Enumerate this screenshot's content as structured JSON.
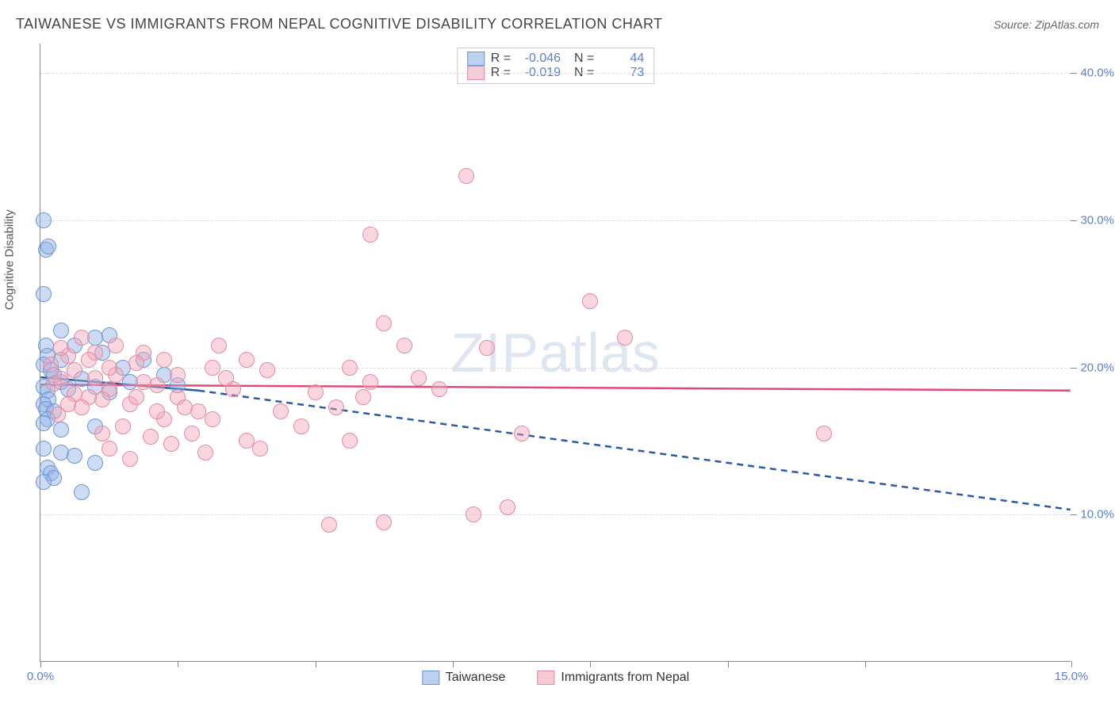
{
  "title": "TAIWANESE VS IMMIGRANTS FROM NEPAL COGNITIVE DISABILITY CORRELATION CHART",
  "source": "Source: ZipAtlas.com",
  "ylabel": "Cognitive Disability",
  "watermark_a": "ZIP",
  "watermark_b": "atlas",
  "chart": {
    "type": "scatter",
    "xlim": [
      0,
      15
    ],
    "ylim": [
      0,
      42
    ],
    "xticks": [
      0,
      2,
      4,
      6,
      8,
      10,
      12,
      15
    ],
    "xtick_labels": {
      "0": "0.0%",
      "15": "15.0%"
    },
    "yticks": [
      10,
      20,
      30,
      40
    ],
    "ytick_labels": {
      "10": "10.0%",
      "20": "20.0%",
      "30": "30.0%",
      "40": "40.0%"
    },
    "grid_color": "#dddddd",
    "background_color": "#ffffff",
    "marker_radius": 10,
    "series": {
      "taiwanese": {
        "label": "Taiwanese",
        "fill": "rgba(144,178,230,0.45)",
        "stroke": "#6b96d6",
        "line_color": "#2b5aa5",
        "R": "-0.046",
        "N": "44",
        "regression": {
          "x1": 0,
          "y1": 19.3,
          "x2": 2.3,
          "y2": 18.4
        },
        "regression_dash": {
          "x1": 2.3,
          "y1": 18.4,
          "x2": 15,
          "y2": 10.3
        },
        "points": [
          [
            0.05,
            30.0
          ],
          [
            0.08,
            28.0
          ],
          [
            0.12,
            28.2
          ],
          [
            0.05,
            25.0
          ],
          [
            0.3,
            22.5
          ],
          [
            0.8,
            22.0
          ],
          [
            1.0,
            22.2
          ],
          [
            0.9,
            21.0
          ],
          [
            0.08,
            21.5
          ],
          [
            0.1,
            20.8
          ],
          [
            0.05,
            20.2
          ],
          [
            0.15,
            19.8
          ],
          [
            0.2,
            19.5
          ],
          [
            0.3,
            19.0
          ],
          [
            0.05,
            18.7
          ],
          [
            0.1,
            18.4
          ],
          [
            0.4,
            18.5
          ],
          [
            0.6,
            19.2
          ],
          [
            0.8,
            18.7
          ],
          [
            1.0,
            18.3
          ],
          [
            1.3,
            19.0
          ],
          [
            1.8,
            19.5
          ],
          [
            2.0,
            18.8
          ],
          [
            0.12,
            17.8
          ],
          [
            0.05,
            17.5
          ],
          [
            0.08,
            17.2
          ],
          [
            0.2,
            17.0
          ],
          [
            0.1,
            16.5
          ],
          [
            0.05,
            16.2
          ],
          [
            0.3,
            15.8
          ],
          [
            0.8,
            16.0
          ],
          [
            0.05,
            14.5
          ],
          [
            0.3,
            14.2
          ],
          [
            0.5,
            14.0
          ],
          [
            0.8,
            13.5
          ],
          [
            0.1,
            13.2
          ],
          [
            0.15,
            12.8
          ],
          [
            0.2,
            12.5
          ],
          [
            0.05,
            12.2
          ],
          [
            0.6,
            11.5
          ],
          [
            0.3,
            20.5
          ],
          [
            0.5,
            21.5
          ],
          [
            1.2,
            20.0
          ],
          [
            1.5,
            20.5
          ]
        ]
      },
      "nepal": {
        "label": "Immigrants from Nepal",
        "fill": "rgba(244,167,185,0.45)",
        "stroke": "#e38ba2",
        "line_color": "#e04976",
        "R": "-0.019",
        "N": "73",
        "regression": {
          "x1": 0,
          "y1": 18.8,
          "x2": 15,
          "y2": 18.4
        },
        "points": [
          [
            6.2,
            33.0
          ],
          [
            4.8,
            29.0
          ],
          [
            8.0,
            24.5
          ],
          [
            5.0,
            23.0
          ],
          [
            5.3,
            21.5
          ],
          [
            6.5,
            21.3
          ],
          [
            8.5,
            22.0
          ],
          [
            11.4,
            15.5
          ],
          [
            7.0,
            15.5
          ],
          [
            6.8,
            10.5
          ],
          [
            6.3,
            10.0
          ],
          [
            5.0,
            9.5
          ],
          [
            4.2,
            9.3
          ],
          [
            4.5,
            15.0
          ],
          [
            5.8,
            18.5
          ],
          [
            4.8,
            19.0
          ],
          [
            4.7,
            18.0
          ],
          [
            4.5,
            20.0
          ],
          [
            4.0,
            18.3
          ],
          [
            3.5,
            17.0
          ],
          [
            3.2,
            14.5
          ],
          [
            3.0,
            15.0
          ],
          [
            2.8,
            18.5
          ],
          [
            2.5,
            20.0
          ],
          [
            2.5,
            16.5
          ],
          [
            2.3,
            17.0
          ],
          [
            2.2,
            15.5
          ],
          [
            2.0,
            19.5
          ],
          [
            2.0,
            18.0
          ],
          [
            1.8,
            20.5
          ],
          [
            1.8,
            16.5
          ],
          [
            1.7,
            18.8
          ],
          [
            1.5,
            21.0
          ],
          [
            1.5,
            19.0
          ],
          [
            1.4,
            20.3
          ],
          [
            1.3,
            17.5
          ],
          [
            1.2,
            16.0
          ],
          [
            1.1,
            21.5
          ],
          [
            1.1,
            19.5
          ],
          [
            1.0,
            18.5
          ],
          [
            1.0,
            20.0
          ],
          [
            0.9,
            17.8
          ],
          [
            0.8,
            21.0
          ],
          [
            0.8,
            19.3
          ],
          [
            0.7,
            20.5
          ],
          [
            0.7,
            18.0
          ],
          [
            0.6,
            17.3
          ],
          [
            0.5,
            19.8
          ],
          [
            0.5,
            18.2
          ],
          [
            0.4,
            20.8
          ],
          [
            0.4,
            17.5
          ],
          [
            0.3,
            19.2
          ],
          [
            0.3,
            21.3
          ],
          [
            0.2,
            18.9
          ],
          [
            0.15,
            20.2
          ],
          [
            2.7,
            19.3
          ],
          [
            3.3,
            19.8
          ],
          [
            1.6,
            15.3
          ],
          [
            2.1,
            17.3
          ],
          [
            1.9,
            14.8
          ],
          [
            0.9,
            15.5
          ],
          [
            1.3,
            13.8
          ],
          [
            2.4,
            14.2
          ],
          [
            3.8,
            16.0
          ],
          [
            3.0,
            20.5
          ],
          [
            5.5,
            19.3
          ],
          [
            4.3,
            17.3
          ],
          [
            1.7,
            17.0
          ],
          [
            2.6,
            21.5
          ],
          [
            0.6,
            22.0
          ],
          [
            1.0,
            14.5
          ],
          [
            1.4,
            18.0
          ],
          [
            0.25,
            16.8
          ]
        ]
      }
    }
  }
}
